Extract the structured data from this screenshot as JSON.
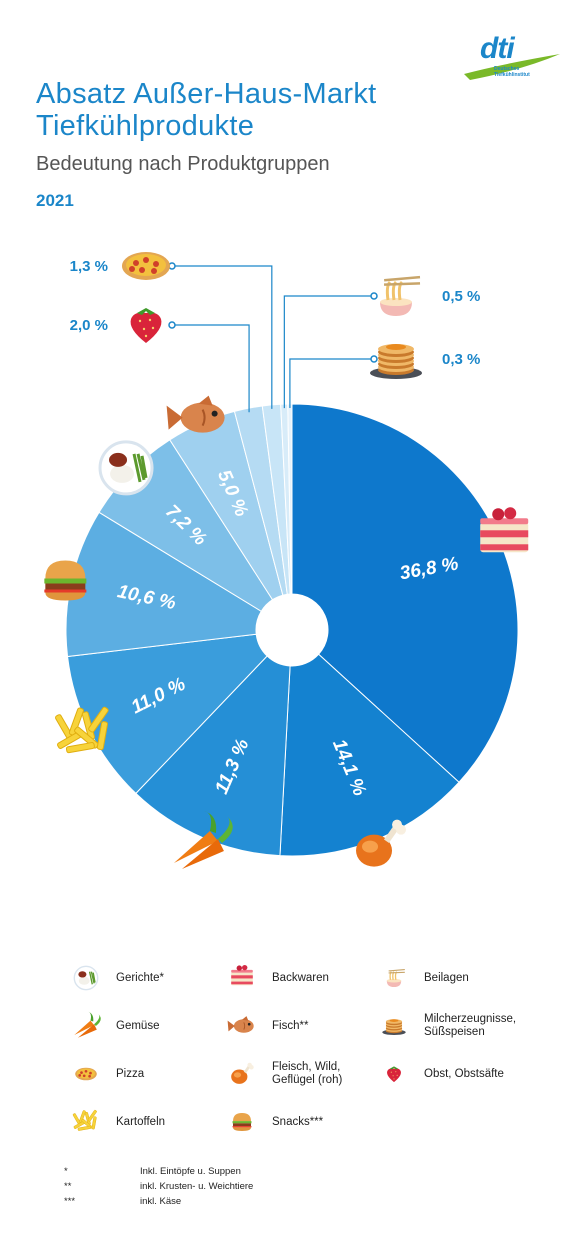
{
  "header": {
    "title_line1": "Absatz Außer-Haus-Markt",
    "title_line2": "Tiefkühlprodukte",
    "subtitle": "Bedeutung nach Produktgruppen",
    "year": "2021",
    "logo_text": "dti",
    "logo_sub": "Deutsches Tiefkühlinstitut"
  },
  "colors": {
    "accent": "#1b86c9",
    "slices": [
      "#0e78cc",
      "#1482d0",
      "#258fd6",
      "#3a9ddc",
      "#5caee2",
      "#7dbfe8",
      "#9fd0ef",
      "#b5dbf3",
      "#c8e5f7",
      "#d8ecf9",
      "#e6f2fb"
    ]
  },
  "chart_data": {
    "type": "pie",
    "title": "Absatz Außer-Haus-Markt Tiefkühlprodukte",
    "subtitle": "Bedeutung nach Produktgruppen",
    "slices": [
      {
        "label": "36,8 %",
        "value": 36.8,
        "icon": "cake-icon",
        "category": "Backwaren"
      },
      {
        "label": "14,1 %",
        "value": 14.1,
        "icon": "chicken-leg-icon",
        "category": "Fleisch, Wild, Geflügel (roh)"
      },
      {
        "label": "11,3 %",
        "value": 11.3,
        "icon": "carrot-icon",
        "category": "Gemüse"
      },
      {
        "label": "11,0 %",
        "value": 11.0,
        "icon": "fries-icon",
        "category": "Kartoffeln"
      },
      {
        "label": "10,6 %",
        "value": 10.6,
        "icon": "burger-icon",
        "category": "Snacks***"
      },
      {
        "label": "7,2 %",
        "value": 7.2,
        "icon": "dish-icon",
        "category": "Gerichte*"
      },
      {
        "label": "5,0 %",
        "value": 5.0,
        "icon": "fish-icon",
        "category": "Fisch**"
      },
      {
        "label": "2,0 %",
        "value": 2.0,
        "icon": "strawberry-icon",
        "category": "Obst, Obstsäfte"
      },
      {
        "label": "1,3 %",
        "value": 1.3,
        "icon": "pizza-icon",
        "category": "Pizza"
      },
      {
        "label": "0,5 %",
        "value": 0.5,
        "icon": "noodles-icon",
        "category": "Beilagen"
      },
      {
        "label": "0,3 %",
        "value": 0.3,
        "icon": "pancakes-icon",
        "category": "Milcherzeugnisse, Süßspeisen"
      }
    ],
    "legend_placement": "bottom"
  },
  "legend": [
    {
      "label": "Gerichte*",
      "icon": "dish-icon"
    },
    {
      "label": "Backwaren",
      "icon": "cake-icon"
    },
    {
      "label": "Beilagen",
      "icon": "noodles-icon"
    },
    {
      "label": "Gemüse",
      "icon": "carrot-icon"
    },
    {
      "label": "Fisch**",
      "icon": "fish-icon"
    },
    {
      "label": "Milcherzeugnisse,\nSüßspeisen",
      "icon": "pancakes-icon"
    },
    {
      "label": "Pizza",
      "icon": "pizza-icon"
    },
    {
      "label": "Fleisch, Wild,\nGeflügel (roh)",
      "icon": "chicken-leg-icon"
    },
    {
      "label": "Obst, Obstsäfte",
      "icon": "strawberry-icon"
    },
    {
      "label": "Kartoffeln",
      "icon": "fries-icon"
    },
    {
      "label": "Snacks***",
      "icon": "burger-icon"
    }
  ],
  "footnotes": [
    {
      "mark": "*",
      "text": "Inkl. Eintöpfe u. Suppen"
    },
    {
      "mark": "**",
      "text": "inkl. Krusten- u. Weichtiere"
    },
    {
      "mark": "***",
      "text": "inkl. Käse"
    }
  ]
}
